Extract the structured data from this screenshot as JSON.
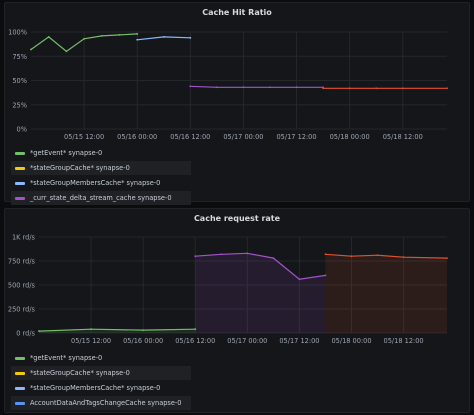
{
  "panels": [
    {
      "title": "Cache Hit Ratio",
      "y_ticks": [
        "100%",
        "75%",
        "50%",
        "25%",
        "0%"
      ],
      "x_ticks": [
        "05/15 12:00",
        "05/16 00:00",
        "05/16 12:00",
        "05/17 00:00",
        "05/17 12:00",
        "05/18 00:00",
        "05/18 12:00"
      ],
      "legend": [
        {
          "label": "*getEvent* synapse-0",
          "color": "#73bf69"
        },
        {
          "label": "*stateGroupCache* synapse-0",
          "color": "#f2cc0c"
        },
        {
          "label": "*stateGroupMembersCache* synapse-0",
          "color": "#8ab8ff"
        },
        {
          "label": "_curr_state_delta_stream_cache synapse-0",
          "color": "#a352cc"
        }
      ]
    },
    {
      "title": "Cache request rate",
      "y_ticks": [
        "1K rd/s",
        "750 rd/s",
        "500 rd/s",
        "250 rd/s",
        "0 rd/s"
      ],
      "x_ticks": [
        "05/15 12:00",
        "05/16 00:00",
        "05/16 12:00",
        "05/17 00:00",
        "05/17 12:00",
        "05/18 00:00",
        "05/18 12:00"
      ],
      "legend": [
        {
          "label": "*getEvent* synapse-0",
          "color": "#73bf69"
        },
        {
          "label": "*stateGroupCache* synapse-0",
          "color": "#f2cc0c"
        },
        {
          "label": "*stateGroupMembersCache* synapse-0",
          "color": "#8ab8ff"
        },
        {
          "label": "AccountDataAndTagsChangeCache synapse-0",
          "color": "#5794f2"
        }
      ]
    }
  ],
  "chart_data": [
    {
      "type": "line",
      "title": "Cache Hit Ratio",
      "ylim": [
        0,
        100
      ],
      "x_range": [
        "05/15 00:00",
        "05/18 22:00"
      ],
      "grid": true,
      "legend_position": "bottom",
      "series": [
        {
          "name": "*getEvent* synapse-0",
          "x": [
            "05/15 00:00",
            "05/15 04:00",
            "05/15 08:00",
            "05/15 12:00",
            "05/15 16:00",
            "05/15 20:00",
            "05/16 00:00"
          ],
          "values": [
            82,
            95,
            80,
            93,
            96,
            97,
            98
          ]
        },
        {
          "name": "*stateGroupMembersCache* synapse-0",
          "x": [
            "05/16 00:00",
            "05/16 06:00",
            "05/16 12:00"
          ],
          "values": [
            92,
            95,
            94
          ]
        },
        {
          "name": "_curr_state_delta_stream_cache synapse-0",
          "x": [
            "05/16 12:00",
            "05/16 18:00",
            "05/17 00:00",
            "05/17 06:00",
            "05/17 12:00",
            "05/17 18:00"
          ],
          "values": [
            44,
            43,
            43,
            43,
            43,
            43
          ]
        },
        {
          "name": "orange series",
          "x": [
            "05/17 18:00",
            "05/18 00:00",
            "05/18 06:00",
            "05/18 12:00",
            "05/18 22:00"
          ],
          "values": [
            42,
            42,
            42,
            42,
            42
          ]
        }
      ]
    },
    {
      "type": "area",
      "title": "Cache request rate",
      "ylim": [
        0,
        1000
      ],
      "x_range": [
        "05/15 00:00",
        "05/18 22:00"
      ],
      "grid": true,
      "legend_position": "bottom",
      "series": [
        {
          "name": "*getEvent* synapse-0",
          "x": [
            "05/15 00:00",
            "05/15 12:00",
            "05/16 00:00",
            "05/16 12:00"
          ],
          "values": [
            20,
            40,
            30,
            40
          ]
        },
        {
          "name": "purple series",
          "x": [
            "05/16 12:00",
            "05/16 18:00",
            "05/17 00:00",
            "05/17 06:00",
            "05/17 12:00",
            "05/17 18:00"
          ],
          "values": [
            800,
            820,
            830,
            780,
            560,
            600
          ]
        },
        {
          "name": "orange series",
          "x": [
            "05/17 18:00",
            "05/18 00:00",
            "05/18 06:00",
            "05/18 12:00",
            "05/18 22:00"
          ],
          "values": [
            820,
            800,
            810,
            790,
            780
          ]
        }
      ]
    }
  ]
}
